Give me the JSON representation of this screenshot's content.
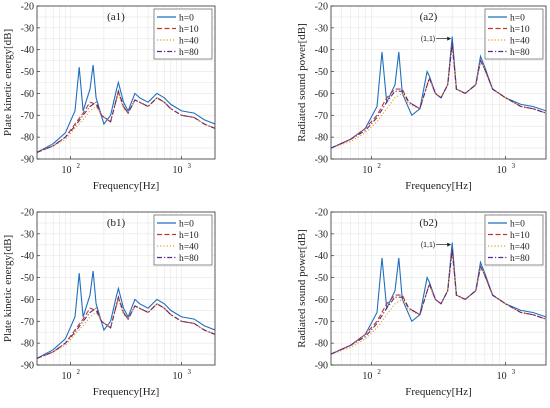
{
  "chart_data": [
    {
      "panel": "(a1)",
      "type": "line",
      "xlabel": "Frequency[Hz]",
      "ylabel": "Plate kinetic energy[dB]",
      "xscale": "log",
      "xlim": [
        50,
        2000
      ],
      "ylim": [
        -90,
        -20
      ],
      "yticks": [
        "-20",
        "-30",
        "-40",
        "-50",
        "-60",
        "-70",
        "-80",
        "-90"
      ],
      "xticks": [
        {
          "base": "10",
          "exp": "2",
          "value": 100
        },
        {
          "base": "10",
          "exp": "3",
          "value": 1000
        }
      ],
      "grid": true,
      "legend_position": "top-right",
      "series": [
        {
          "name": "h=0",
          "color": "#1f6fbf",
          "dash": "solid",
          "x": [
            50,
            70,
            90,
            110,
            120,
            130,
            150,
            160,
            170,
            200,
            230,
            260,
            270,
            300,
            330,
            380,
            420,
            500,
            600,
            700,
            800,
            1000,
            1300,
            1600,
            2000
          ],
          "y": [
            -87,
            -83,
            -78,
            -68,
            -48,
            -68,
            -58,
            -47,
            -62,
            -74,
            -70,
            -58,
            -55,
            -64,
            -68,
            -60,
            -62,
            -64,
            -60,
            -62,
            -65,
            -68,
            -69,
            -72,
            -74
          ]
        },
        {
          "name": "h=10",
          "color": "#c0392b",
          "dash": "dash",
          "x": [
            50,
            70,
            90,
            110,
            130,
            150,
            170,
            190,
            230,
            270,
            300,
            330,
            380,
            420,
            500,
            600,
            700,
            800,
            1000,
            1300,
            1600,
            2000
          ],
          "y": [
            -87,
            -84,
            -80,
            -74,
            -69,
            -64,
            -65,
            -70,
            -73,
            -59,
            -66,
            -69,
            -63,
            -64,
            -66,
            -62,
            -64,
            -67,
            -70,
            -71,
            -74,
            -76
          ]
        },
        {
          "name": "h=40",
          "color": "#e3a21a",
          "dash": "dot",
          "x": [
            50,
            70,
            90,
            110,
            130,
            150,
            170,
            190,
            230,
            270,
            300,
            330,
            380,
            420,
            500,
            600,
            700,
            800,
            1000,
            1300,
            1600,
            2000
          ],
          "y": [
            -87,
            -84,
            -81,
            -76,
            -72,
            -68,
            -66,
            -70,
            -73,
            -60,
            -67,
            -69,
            -63,
            -64,
            -66,
            -62,
            -64,
            -67,
            -70,
            -71,
            -74,
            -76
          ]
        },
        {
          "name": "h=80",
          "color": "#5b2b86",
          "dash": "dashdot",
          "x": [
            50,
            70,
            90,
            110,
            130,
            150,
            170,
            190,
            230,
            270,
            300,
            330,
            380,
            420,
            500,
            600,
            700,
            800,
            1000,
            1300,
            1600,
            2000
          ],
          "y": [
            -87,
            -84,
            -80,
            -75,
            -70,
            -66,
            -64,
            -70,
            -73,
            -59,
            -66,
            -69,
            -63,
            -64,
            -66,
            -62,
            -64,
            -67,
            -70,
            -71,
            -74,
            -76
          ]
        }
      ]
    },
    {
      "panel": "(a2)",
      "type": "line",
      "xlabel": "Frequency[Hz]",
      "ylabel": "Radiated sound power[dB]",
      "xscale": "log",
      "xlim": [
        50,
        2000
      ],
      "ylim": [
        -90,
        -20
      ],
      "yticks": [
        "-20",
        "-30",
        "-40",
        "-50",
        "-60",
        "-70",
        "-80",
        "-90"
      ],
      "xticks": [
        {
          "base": "10",
          "exp": "2",
          "value": 100
        },
        {
          "base": "10",
          "exp": "3",
          "value": 1000
        }
      ],
      "grid": true,
      "legend_position": "top-right",
      "annotation": {
        "text": "(1,1)",
        "x": 400,
        "y": -34
      },
      "series": [
        {
          "name": "h=0",
          "color": "#1f6fbf",
          "dash": "solid",
          "x": [
            50,
            70,
            90,
            110,
            120,
            130,
            150,
            160,
            170,
            200,
            230,
            260,
            270,
            300,
            330,
            370,
            400,
            430,
            500,
            600,
            650,
            700,
            800,
            1000,
            1300,
            1600,
            2000
          ],
          "y": [
            -85,
            -81,
            -76,
            -66,
            -41,
            -64,
            -56,
            -41,
            -60,
            -70,
            -67,
            -50,
            -52,
            -60,
            -62,
            -56,
            -34,
            -58,
            -60,
            -56,
            -43,
            -48,
            -58,
            -62,
            -65,
            -66,
            -68
          ]
        },
        {
          "name": "h=10",
          "color": "#c0392b",
          "dash": "dash",
          "x": [
            50,
            70,
            90,
            110,
            130,
            150,
            170,
            190,
            230,
            270,
            300,
            330,
            370,
            400,
            430,
            500,
            600,
            650,
            700,
            800,
            1000,
            1300,
            1600,
            2000
          ],
          "y": [
            -85,
            -81,
            -76,
            -70,
            -62,
            -58,
            -58,
            -64,
            -67,
            -53,
            -60,
            -62,
            -56,
            -37,
            -58,
            -60,
            -56,
            -45,
            -49,
            -58,
            -62,
            -66,
            -67,
            -69
          ]
        },
        {
          "name": "h=40",
          "color": "#e3a21a",
          "dash": "dot",
          "x": [
            50,
            70,
            90,
            110,
            130,
            150,
            170,
            190,
            230,
            270,
            300,
            330,
            370,
            400,
            430,
            500,
            600,
            650,
            700,
            800,
            1000,
            1300,
            1600,
            2000
          ],
          "y": [
            -85,
            -82,
            -78,
            -73,
            -67,
            -62,
            -60,
            -65,
            -67,
            -53,
            -60,
            -62,
            -56,
            -38,
            -58,
            -60,
            -56,
            -45,
            -49,
            -58,
            -62,
            -66,
            -67,
            -69
          ]
        },
        {
          "name": "h=80",
          "color": "#5b2b86",
          "dash": "dashdot",
          "x": [
            50,
            70,
            90,
            110,
            130,
            150,
            170,
            190,
            230,
            270,
            300,
            330,
            370,
            400,
            430,
            500,
            600,
            650,
            700,
            800,
            1000,
            1300,
            1600,
            2000
          ],
          "y": [
            -85,
            -81,
            -77,
            -71,
            -64,
            -59,
            -59,
            -64,
            -67,
            -53,
            -60,
            -62,
            -56,
            -37,
            -58,
            -60,
            -56,
            -45,
            -49,
            -58,
            -62,
            -66,
            -67,
            -69
          ]
        }
      ]
    },
    {
      "panel": "(b1)",
      "type": "line",
      "xlabel": "Frequency[Hz]",
      "ylabel": "Plate kinetic energy[dB]",
      "xscale": "log",
      "xlim": [
        50,
        2000
      ],
      "ylim": [
        -90,
        -20
      ],
      "yticks": [
        "-20",
        "-30",
        "-40",
        "-50",
        "-60",
        "-70",
        "-80",
        "-90"
      ],
      "xticks": [
        {
          "base": "10",
          "exp": "2",
          "value": 100
        },
        {
          "base": "10",
          "exp": "3",
          "value": 1000
        }
      ],
      "grid": true,
      "legend_position": "top-right",
      "series": [
        {
          "name": "h=0",
          "color": "#1f6fbf",
          "dash": "solid",
          "x": [
            50,
            70,
            90,
            110,
            120,
            130,
            150,
            160,
            170,
            200,
            230,
            260,
            270,
            300,
            330,
            380,
            420,
            500,
            600,
            700,
            800,
            1000,
            1300,
            1600,
            2000
          ],
          "y": [
            -87,
            -83,
            -78,
            -68,
            -48,
            -68,
            -58,
            -47,
            -62,
            -74,
            -70,
            -58,
            -55,
            -64,
            -68,
            -60,
            -62,
            -64,
            -60,
            -62,
            -65,
            -68,
            -69,
            -72,
            -74
          ]
        },
        {
          "name": "h=10",
          "color": "#c0392b",
          "dash": "dash",
          "x": [
            50,
            70,
            90,
            110,
            130,
            150,
            170,
            190,
            230,
            270,
            300,
            330,
            380,
            420,
            500,
            600,
            700,
            800,
            1000,
            1300,
            1600,
            2000
          ],
          "y": [
            -87,
            -84,
            -80,
            -74,
            -69,
            -64,
            -65,
            -70,
            -73,
            -59,
            -66,
            -69,
            -63,
            -64,
            -66,
            -62,
            -64,
            -67,
            -70,
            -71,
            -74,
            -76
          ]
        },
        {
          "name": "h=40",
          "color": "#e3a21a",
          "dash": "dot",
          "x": [
            50,
            70,
            90,
            110,
            130,
            150,
            170,
            190,
            230,
            270,
            300,
            330,
            380,
            420,
            500,
            600,
            700,
            800,
            1000,
            1300,
            1600,
            2000
          ],
          "y": [
            -87,
            -84,
            -81,
            -76,
            -72,
            -68,
            -66,
            -70,
            -73,
            -60,
            -67,
            -69,
            -63,
            -64,
            -66,
            -62,
            -64,
            -67,
            -70,
            -71,
            -74,
            -76
          ]
        },
        {
          "name": "h=80",
          "color": "#5b2b86",
          "dash": "dashdot",
          "x": [
            50,
            70,
            90,
            110,
            130,
            150,
            170,
            190,
            230,
            270,
            300,
            330,
            380,
            420,
            500,
            600,
            700,
            800,
            1000,
            1300,
            1600,
            2000
          ],
          "y": [
            -87,
            -84,
            -80,
            -75,
            -70,
            -66,
            -64,
            -70,
            -73,
            -59,
            -66,
            -69,
            -63,
            -64,
            -66,
            -62,
            -64,
            -67,
            -70,
            -71,
            -74,
            -76
          ]
        }
      ]
    },
    {
      "panel": "(b2)",
      "type": "line",
      "xlabel": "Frequency[Hz]",
      "ylabel": "Radiated sound power[dB]",
      "xscale": "log",
      "xlim": [
        50,
        2000
      ],
      "ylim": [
        -90,
        -20
      ],
      "yticks": [
        "-20",
        "-30",
        "-40",
        "-50",
        "-60",
        "-70",
        "-80",
        "-90"
      ],
      "xticks": [
        {
          "base": "10",
          "exp": "2",
          "value": 100
        },
        {
          "base": "10",
          "exp": "3",
          "value": 1000
        }
      ],
      "grid": true,
      "legend_position": "top-right",
      "annotation": {
        "text": "(1,1)",
        "x": 400,
        "y": -34
      },
      "series": [
        {
          "name": "h=0",
          "color": "#1f6fbf",
          "dash": "solid",
          "x": [
            50,
            70,
            90,
            110,
            120,
            130,
            150,
            160,
            170,
            200,
            230,
            260,
            270,
            300,
            330,
            370,
            400,
            430,
            500,
            600,
            650,
            700,
            800,
            1000,
            1300,
            1600,
            2000
          ],
          "y": [
            -85,
            -81,
            -76,
            -66,
            -41,
            -64,
            -56,
            -41,
            -60,
            -70,
            -67,
            -50,
            -52,
            -60,
            -62,
            -56,
            -34,
            -58,
            -60,
            -56,
            -43,
            -48,
            -58,
            -62,
            -65,
            -66,
            -68
          ]
        },
        {
          "name": "h=10",
          "color": "#c0392b",
          "dash": "dash",
          "x": [
            50,
            70,
            90,
            110,
            130,
            150,
            170,
            190,
            230,
            270,
            300,
            330,
            370,
            400,
            430,
            500,
            600,
            650,
            700,
            800,
            1000,
            1300,
            1600,
            2000
          ],
          "y": [
            -85,
            -81,
            -76,
            -70,
            -62,
            -58,
            -58,
            -64,
            -67,
            -53,
            -60,
            -62,
            -56,
            -37,
            -58,
            -60,
            -56,
            -45,
            -49,
            -58,
            -62,
            -66,
            -67,
            -69
          ]
        },
        {
          "name": "h=40",
          "color": "#e3a21a",
          "dash": "dot",
          "x": [
            50,
            70,
            90,
            110,
            130,
            150,
            170,
            190,
            230,
            270,
            300,
            330,
            370,
            400,
            430,
            500,
            600,
            650,
            700,
            800,
            1000,
            1300,
            1600,
            2000
          ],
          "y": [
            -85,
            -82,
            -78,
            -73,
            -67,
            -62,
            -60,
            -65,
            -67,
            -53,
            -60,
            -62,
            -56,
            -38,
            -58,
            -60,
            -56,
            -45,
            -49,
            -58,
            -62,
            -66,
            -67,
            -69
          ]
        },
        {
          "name": "h=80",
          "color": "#5b2b86",
          "dash": "dashdot",
          "x": [
            50,
            70,
            90,
            110,
            130,
            150,
            170,
            190,
            230,
            270,
            300,
            330,
            370,
            400,
            430,
            500,
            600,
            650,
            700,
            800,
            1000,
            1300,
            1600,
            2000
          ],
          "y": [
            -85,
            -81,
            -77,
            -71,
            -64,
            -59,
            -59,
            -64,
            -67,
            -53,
            -60,
            -62,
            -56,
            -37,
            -58,
            -60,
            -56,
            -45,
            -49,
            -58,
            -62,
            -66,
            -67,
            -69
          ]
        }
      ]
    }
  ]
}
